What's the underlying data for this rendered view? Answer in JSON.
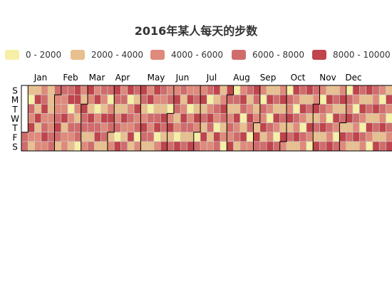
{
  "chart_data": {
    "type": "heatmap",
    "subtype": "calendar",
    "title": "2016年某人每天的步数",
    "year": 2016,
    "legend": {
      "position": "top",
      "pieces": [
        {
          "label": "0 - 2000",
          "min": 0,
          "max": 2000,
          "color": "#f6efa6"
        },
        {
          "label": "2000 - 4000",
          "min": 2000,
          "max": 4000,
          "color": "#e8bf8e"
        },
        {
          "label": "4000 - 6000",
          "min": 4000,
          "max": 6000,
          "color": "#df8a7b"
        },
        {
          "label": "6000 - 8000",
          "min": 6000,
          "max": 8000,
          "color": "#d16c6c"
        },
        {
          "label": "8000 - 10000",
          "min": 8000,
          "max": 10000,
          "color": "#bf444c"
        }
      ]
    },
    "month_labels": [
      "Jan",
      "Feb",
      "Mar",
      "Apr",
      "May",
      "Jun",
      "Jul",
      "Aug",
      "Sep",
      "Oct",
      "Nov",
      "Dec"
    ],
    "day_labels": [
      "S",
      "M",
      "T",
      "W",
      "T",
      "F",
      "S"
    ],
    "value_range": [
      0,
      10000
    ],
    "values": [
      6838,
      6126,
      2015,
      1014,
      7891,
      4357,
      9025,
      5416,
      3987,
      3142,
      9287,
      3102,
      8738,
      3612,
      5294,
      4637,
      5883,
      6817,
      9709,
      4112,
      6105,
      9111,
      4719,
      3149,
      2451,
      2015,
      5512,
      4779,
      7837,
      6112,
      7127,
      5823,
      4314,
      6016,
      9734,
      6713,
      2618,
      7145,
      5932,
      4006,
      9307,
      2902,
      4109,
      4006,
      7211,
      8113,
      1234,
      5911,
      6901,
      4121,
      3104,
      8712,
      9143,
      5012,
      2302,
      6734,
      7891,
      1502,
      4412,
      3310,
      8923,
      6120,
      7712,
      2014,
      5603,
      9021,
      4103,
      3421,
      8112,
      7319,
      2841,
      6014,
      5512,
      9301,
      1403,
      4722,
      6631,
      8014,
      3205,
      7412,
      5109,
      2703,
      9612,
      4801,
      6212,
      3902,
      7801,
      1104,
      5403,
      8213,
      6612,
      2901,
      4410,
      9112,
      7403,
      3312,
      5814,
      6901,
      1712,
      8302,
      4509,
      7021,
      2104,
      9403,
      5712,
      3613,
      6814,
      8401,
      1903,
      4702,
      7614,
      5201,
      9010,
      2612,
      6303,
      3801,
      8512,
      4104,
      7302,
      1501,
      5903,
      9612,
      6101,
      2803,
      4401,
      8714,
      7103,
      3209,
      5602,
      9301,
      1802,
      6814,
      4213,
      7701,
      2401,
      8912,
      5310,
      3114,
      6602,
      9214,
      1304,
      4803,
      7512,
      5901,
      2202,
      8401,
      6013,
      3704,
      9703,
      4502,
      7214,
      1603,
      5414,
      8801,
      2913,
      6202,
      4007,
      9313,
      7801,
      3202,
      5713,
      1404,
      8214,
      6601,
      2704,
      4901,
      9512,
      7001,
      3401,
      6214,
      5103,
      8601,
      1902,
      4301,
      7712,
      2501,
      9001,
      5814,
      6304,
      3013,
      8402,
      4712,
      1101,
      7202,
      5613,
      9402,
      2304,
      6901,
      3802,
      8113,
      4114,
      7301,
      1514,
      5902,
      9101,
      6801,
      2214,
      4613,
      8904,
      3312,
      7614,
      5002,
      1601,
      9214,
      6212,
      2902,
      4401,
      8002,
      7113,
      3614,
      5214,
      1203,
      9513,
      6401,
      2812,
      4103,
      7902,
      5502,
      8301,
      1912,
      6713,
      3401,
      9001,
      4803,
      7212,
      2101,
      5613,
      8512,
      6101,
      1704,
      3914,
      9412,
      4501,
      7712,
      2604,
      5303,
      8002,
      6914,
      1213,
      4201,
      9613,
      7401,
      3013,
      5802,
      2301,
      8312,
      6614,
      4014,
      1501,
      7913,
      5101,
      9202,
      2813,
      6401,
      3612,
      8703,
      4401,
      1913,
      7214,
      5814,
      9001,
      2303,
      6112,
      3402,
      8814,
      4713,
      1203,
      7001,
      5612,
      9513,
      2602,
      6312,
      3914,
      8201,
      4101,
      1702,
      7613,
      5301,
      9414,
      2114,
      6802,
      3501,
      8012,
      4912,
      1401,
      7313,
      5903,
      9112,
      2414,
      6203,
      3713,
      8901,
      4203,
      1301,
      7002,
      5513,
      9702,
      2902,
      6614,
      3301,
      8514,
      4612,
      1114,
      7814,
      5202,
      9301,
      2014,
      6401,
      3913,
      8103,
      4401,
      1813,
      7503,
      5713,
      9601,
      2714,
      6014,
      3214,
      8412,
      4812,
      1501,
      7114,
      5401,
      9013,
      2303,
      6713,
      3601,
      8701,
      4114,
      1213,
      7703,
      5502,
      9512,
      2514,
      6113,
      3402,
      8201,
      4713,
      1614,
      7202,
      5812,
      9303,
      2204,
      6503,
      3714,
      8612,
      4301,
      1101,
      7412,
      5113,
      9814,
      2601,
      6804,
      3502,
      8014,
      4604,
      1412,
      7912,
      5301,
      9114,
      2803,
      6201,
      3913,
      8803,
      4502,
      1903,
      7614,
      5702,
      9412,
      2402,
      6612,
      3113,
      8303,
      4013,
      1301,
      7004,
      5914,
      9702,
      2113,
      6303,
      3814,
      8504,
      4702,
      1614,
      7313,
      5412,
      9003,
      2714,
      6914
    ]
  }
}
